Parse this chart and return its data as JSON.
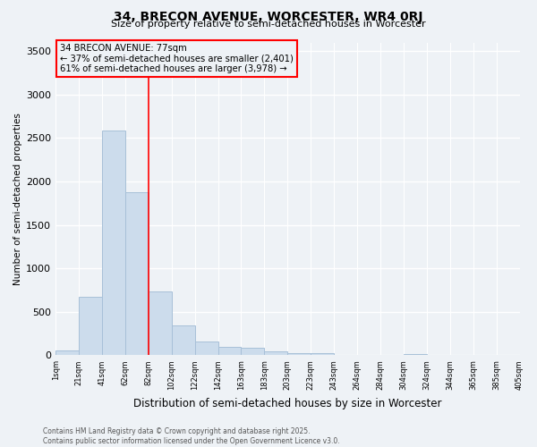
{
  "title1": "34, BRECON AVENUE, WORCESTER, WR4 0RJ",
  "title2": "Size of property relative to semi-detached houses in Worcester",
  "xlabel": "Distribution of semi-detached houses by size in Worcester",
  "ylabel": "Number of semi-detached properties",
  "bar_color": "#ccdcec",
  "bar_edgecolor": "#a8c0d8",
  "annotation_title": "34 BRECON AVENUE: 77sqm",
  "annotation_line2": "← 37% of semi-detached houses are smaller (2,401)",
  "annotation_line3": "61% of semi-detached houses are larger (3,978) →",
  "footer1": "Contains HM Land Registry data © Crown copyright and database right 2025.",
  "footer2": "Contains public sector information licensed under the Open Government Licence v3.0.",
  "bin_labels": [
    "1sqm",
    "21sqm",
    "41sqm",
    "62sqm",
    "82sqm",
    "102sqm",
    "122sqm",
    "142sqm",
    "163sqm",
    "183sqm",
    "203sqm",
    "223sqm",
    "243sqm",
    "264sqm",
    "284sqm",
    "304sqm",
    "324sqm",
    "344sqm",
    "365sqm",
    "385sqm",
    "405sqm"
  ],
  "counts": [
    60,
    670,
    2590,
    1880,
    740,
    340,
    155,
    100,
    90,
    45,
    28,
    20,
    8,
    0,
    0,
    18,
    0,
    0,
    0,
    0
  ],
  "red_line_bin": 4,
  "ylim": [
    0,
    3600
  ],
  "yticks": [
    0,
    500,
    1000,
    1500,
    2000,
    2500,
    3000,
    3500
  ],
  "bg_color": "#eef2f6",
  "grid_color": "#ffffff"
}
